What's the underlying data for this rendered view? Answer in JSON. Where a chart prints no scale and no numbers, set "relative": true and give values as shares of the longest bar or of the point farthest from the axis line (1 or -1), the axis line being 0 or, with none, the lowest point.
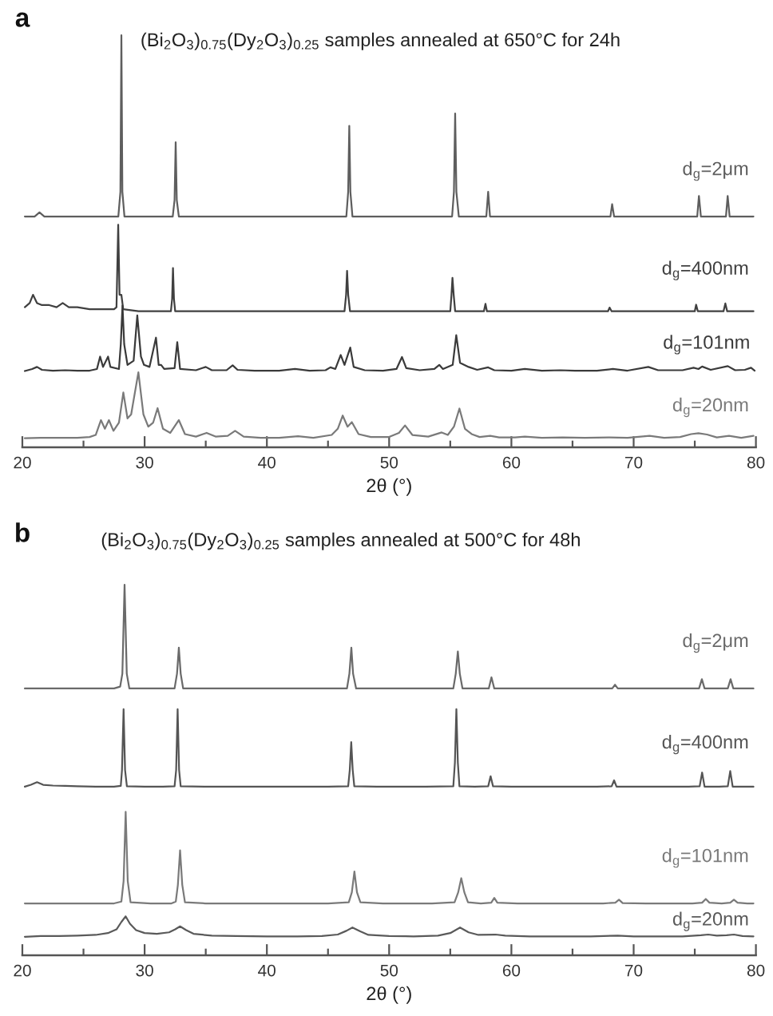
{
  "chart_data": [
    {
      "type": "line",
      "relative": true,
      "title": "(Bi$_{2}$O$_{3}$)$_{0.75}$(Dy$_{2}$O$_{3}$)$_{0.25}$ samples annealed at 650°C for 24h",
      "xlabel": "2θ (°)",
      "annotations": [
        "a"
      ],
      "xlim": [
        20,
        80
      ],
      "xticks": [
        20,
        {
          "value": 25,
          "label": null
        },
        30,
        {
          "value": 35,
          "label": null
        },
        40,
        {
          "value": 45,
          "label": null
        },
        50,
        {
          "value": 55,
          "label": null
        },
        60,
        {
          "value": 65,
          "label": null
        },
        70,
        {
          "value": 75,
          "label": null
        },
        80
      ],
      "series": [
        {
          "name": "d$_{g}$=2μm",
          "color": "#5e5e5e",
          "x": [
            20.2,
            21,
            21.4,
            21.8,
            23,
            24.5,
            26,
            27.3,
            27.85,
            28.02,
            28.1,
            28.18,
            28.35,
            29.5,
            31,
            32.3,
            32.45,
            32.54,
            32.63,
            32.8,
            34,
            36,
            38,
            40,
            42,
            44,
            46.5,
            46.65,
            46.74,
            46.83,
            47,
            48.5,
            50,
            52,
            54,
            55.15,
            55.3,
            55.4,
            55.5,
            55.7,
            57,
            57.95,
            58.1,
            58.25,
            60,
            62,
            64,
            66,
            68.1,
            68.24,
            68.4,
            70,
            72,
            74,
            75.2,
            75.34,
            75.5,
            76.5,
            77.55,
            77.69,
            77.85,
            79,
            79.8
          ],
          "values": [
            0.56,
            0.56,
            0.57,
            0.56,
            0.56,
            0.56,
            0.56,
            0.56,
            0.56,
            0.62,
            1.0,
            0.62,
            0.56,
            0.56,
            0.56,
            0.56,
            0.6,
            0.74,
            0.6,
            0.56,
            0.56,
            0.56,
            0.56,
            0.56,
            0.56,
            0.56,
            0.56,
            0.62,
            0.78,
            0.62,
            0.56,
            0.56,
            0.56,
            0.56,
            0.56,
            0.56,
            0.62,
            0.81,
            0.62,
            0.56,
            0.56,
            0.56,
            0.62,
            0.56,
            0.56,
            0.56,
            0.56,
            0.56,
            0.56,
            0.59,
            0.56,
            0.56,
            0.56,
            0.56,
            0.56,
            0.61,
            0.56,
            0.56,
            0.56,
            0.61,
            0.56,
            0.56,
            0.56
          ]
        },
        {
          "name": "d$_{g}$=400nm",
          "color": "#404040",
          "x": [
            20.2,
            20.6,
            20.87,
            21.2,
            21.6,
            22.2,
            22.8,
            23.3,
            23.8,
            24.5,
            25.5,
            26.5,
            27.5,
            27.7,
            27.84,
            27.95,
            28.1,
            28.25,
            29.5,
            31,
            32.15,
            32.25,
            32.32,
            32.4,
            32.5,
            34,
            36,
            38,
            40,
            42,
            44,
            46.35,
            46.48,
            46.56,
            46.65,
            46.8,
            48.5,
            50.5,
            52.5,
            54.5,
            55,
            55.1,
            55.18,
            55.28,
            55.4,
            57,
            57.75,
            57.88,
            58,
            60,
            62,
            64,
            66,
            67.9,
            68.03,
            68.2,
            70,
            72,
            74,
            75,
            75.11,
            75.25,
            76.5,
            77.35,
            77.5,
            77.65,
            79,
            79.8
          ],
          "values": [
            0.34,
            0.35,
            0.37,
            0.35,
            0.345,
            0.345,
            0.34,
            0.35,
            0.34,
            0.34,
            0.335,
            0.335,
            0.335,
            0.34,
            0.54,
            0.37,
            0.37,
            0.335,
            0.33,
            0.33,
            0.33,
            0.36,
            0.435,
            0.36,
            0.33,
            0.33,
            0.33,
            0.33,
            0.33,
            0.33,
            0.33,
            0.33,
            0.37,
            0.428,
            0.37,
            0.33,
            0.33,
            0.33,
            0.33,
            0.33,
            0.33,
            0.37,
            0.411,
            0.37,
            0.33,
            0.33,
            0.33,
            0.348,
            0.33,
            0.33,
            0.33,
            0.33,
            0.33,
            0.33,
            0.339,
            0.33,
            0.33,
            0.33,
            0.33,
            0.33,
            0.346,
            0.33,
            0.33,
            0.33,
            0.349,
            0.33,
            0.33,
            0.33
          ]
        },
        {
          "name": "d$_{g}$=101nm",
          "color": "#3a3a3a",
          "x": [
            20.2,
            20.8,
            21.2,
            21.6,
            22.5,
            23.5,
            24.5,
            25.5,
            26.1,
            26.36,
            26.6,
            27.01,
            27.2,
            27.9,
            28.05,
            28.19,
            28.33,
            28.6,
            29.1,
            29.4,
            29.7,
            29.95,
            30.4,
            30.93,
            31.15,
            31.35,
            31.6,
            32.45,
            32.67,
            32.9,
            34.2,
            35,
            35.5,
            36.7,
            37.2,
            37.6,
            39,
            41,
            42.3,
            43.5,
            44.8,
            45.2,
            45.6,
            46.04,
            46.35,
            46.82,
            47.1,
            48,
            49.5,
            50.6,
            51.05,
            51.4,
            52.5,
            53.7,
            54.1,
            54.4,
            55.2,
            55.49,
            55.8,
            56.5,
            57.2,
            58.1,
            58.6,
            60,
            61.1,
            62.5,
            64,
            65.2,
            67,
            68.3,
            69.5,
            71.2,
            72,
            74,
            74.9,
            75.3,
            75.6,
            76.3,
            77.7,
            78.3,
            79.1,
            79.6,
            79.9
          ],
          "values": [
            0.185,
            0.19,
            0.195,
            0.188,
            0.186,
            0.187,
            0.186,
            0.186,
            0.19,
            0.22,
            0.195,
            0.22,
            0.195,
            0.19,
            0.25,
            0.344,
            0.25,
            0.2,
            0.21,
            0.32,
            0.22,
            0.2,
            0.195,
            0.266,
            0.2,
            0.2,
            0.19,
            0.192,
            0.255,
            0.19,
            0.187,
            0.195,
            0.187,
            0.187,
            0.199,
            0.188,
            0.186,
            0.186,
            0.19,
            0.186,
            0.187,
            0.194,
            0.19,
            0.224,
            0.2,
            0.242,
            0.195,
            0.187,
            0.186,
            0.19,
            0.219,
            0.192,
            0.187,
            0.19,
            0.2,
            0.19,
            0.2,
            0.272,
            0.205,
            0.195,
            0.188,
            0.194,
            0.187,
            0.186,
            0.19,
            0.186,
            0.187,
            0.186,
            0.186,
            0.19,
            0.186,
            0.195,
            0.187,
            0.187,
            0.193,
            0.19,
            0.196,
            0.188,
            0.197,
            0.187,
            0.188,
            0.193,
            0.186
          ]
        },
        {
          "name": "d$_{g}$=20nm",
          "color": "#7a7a7a",
          "x": [
            20.2,
            21.5,
            23,
            24.5,
            25.5,
            26,
            26.43,
            26.75,
            27.08,
            27.45,
            27.9,
            28.26,
            28.6,
            28.9,
            29.49,
            29.9,
            30.3,
            30.7,
            31.06,
            31.5,
            32.1,
            32.8,
            33.3,
            34.2,
            35.07,
            35.8,
            36.8,
            37.4,
            38.1,
            39.5,
            41,
            42.55,
            43.8,
            45.3,
            45.8,
            46.2,
            46.6,
            46.95,
            47.5,
            48.5,
            50,
            50.8,
            51.3,
            51.9,
            53.2,
            54.3,
            54.8,
            55.3,
            55.75,
            56.2,
            56.75,
            57.4,
            58.27,
            59,
            60.3,
            61.1,
            62.5,
            64.2,
            66,
            68,
            69.5,
            71.3,
            72.5,
            73.8,
            74.7,
            75.3,
            76,
            76.8,
            77.8,
            78.8,
            79.8
          ],
          "values": [
            0.022,
            0.023,
            0.023,
            0.023,
            0.025,
            0.03,
            0.066,
            0.045,
            0.066,
            0.04,
            0.06,
            0.133,
            0.07,
            0.08,
            0.182,
            0.08,
            0.05,
            0.06,
            0.095,
            0.045,
            0.035,
            0.066,
            0.032,
            0.026,
            0.035,
            0.026,
            0.028,
            0.04,
            0.026,
            0.023,
            0.023,
            0.027,
            0.023,
            0.03,
            0.045,
            0.077,
            0.05,
            0.061,
            0.032,
            0.025,
            0.025,
            0.035,
            0.053,
            0.03,
            0.026,
            0.036,
            0.03,
            0.05,
            0.094,
            0.045,
            0.032,
            0.025,
            0.028,
            0.024,
            0.024,
            0.026,
            0.023,
            0.024,
            0.023,
            0.024,
            0.023,
            0.028,
            0.023,
            0.025,
            0.032,
            0.034,
            0.031,
            0.024,
            0.028,
            0.023,
            0.028
          ]
        }
      ]
    },
    {
      "type": "line",
      "relative": true,
      "title": "(Bi$_{2}$O$_{3}$)$_{0.75}$(Dy$_{2}$O$_{3}$)$_{0.25}$ samples annealed at 500°C for 48h",
      "xlabel": "2θ (°)",
      "annotations": [
        "b"
      ],
      "xlim": [
        20,
        80
      ],
      "xticks": [
        20,
        {
          "value": 25,
          "label": null
        },
        30,
        {
          "value": 35,
          "label": null
        },
        40,
        {
          "value": 45,
          "label": null
        },
        50,
        {
          "value": 55,
          "label": null
        },
        60,
        {
          "value": 65,
          "label": null
        },
        70,
        {
          "value": 75,
          "label": null
        },
        80
      ],
      "series": [
        {
          "name": "d$_{g}$=2μm",
          "color": "#6a6a6a",
          "x": [
            20.2,
            21.5,
            23,
            24.5,
            26,
            27.5,
            28,
            28.18,
            28.36,
            28.54,
            28.75,
            30,
            31.5,
            32.45,
            32.65,
            32.8,
            32.95,
            33.15,
            35,
            37.5,
            40,
            42.5,
            45,
            46.55,
            46.75,
            46.91,
            47.05,
            47.3,
            49,
            51,
            53,
            55.25,
            55.45,
            55.62,
            55.78,
            56,
            57,
            58.15,
            58.37,
            58.6,
            60,
            62.5,
            65,
            67,
            68.25,
            68.48,
            68.7,
            70.5,
            72.5,
            74.5,
            75.35,
            75.58,
            75.8,
            77,
            77.7,
            77.93,
            78.15,
            79.2,
            79.8
          ],
          "values": [
            0.72,
            0.72,
            0.72,
            0.72,
            0.72,
            0.72,
            0.725,
            0.76,
            1.0,
            0.76,
            0.72,
            0.72,
            0.72,
            0.72,
            0.76,
            0.83,
            0.76,
            0.72,
            0.72,
            0.72,
            0.72,
            0.72,
            0.72,
            0.72,
            0.76,
            0.83,
            0.76,
            0.72,
            0.72,
            0.72,
            0.72,
            0.72,
            0.76,
            0.82,
            0.76,
            0.72,
            0.72,
            0.72,
            0.75,
            0.72,
            0.72,
            0.72,
            0.72,
            0.72,
            0.72,
            0.73,
            0.72,
            0.72,
            0.72,
            0.72,
            0.72,
            0.745,
            0.72,
            0.72,
            0.72,
            0.745,
            0.72,
            0.72,
            0.72
          ]
        },
        {
          "name": "d$_{g}$=400nm",
          "color": "#555555",
          "x": [
            20.2,
            20.7,
            21.2,
            21.7,
            22.5,
            23.5,
            24.5,
            26,
            27.5,
            28.05,
            28.15,
            28.28,
            28.4,
            28.55,
            30,
            31.5,
            32.45,
            32.58,
            32.7,
            32.82,
            32.95,
            35,
            37.5,
            40,
            42.5,
            45,
            46.65,
            46.78,
            46.9,
            47.02,
            47.15,
            49,
            51,
            53,
            55.25,
            55.38,
            55.5,
            55.62,
            55.75,
            57,
            58.1,
            58.3,
            58.5,
            60,
            62.5,
            65,
            67,
            68.2,
            68.4,
            68.6,
            70.5,
            72.5,
            74.5,
            75.4,
            75.6,
            75.8,
            77,
            77.7,
            77.9,
            78.1,
            79.2,
            79.8
          ],
          "values": [
            0.455,
            0.46,
            0.467,
            0.46,
            0.458,
            0.457,
            0.456,
            0.455,
            0.455,
            0.457,
            0.5,
            0.664,
            0.5,
            0.456,
            0.455,
            0.455,
            0.456,
            0.5,
            0.664,
            0.5,
            0.456,
            0.455,
            0.455,
            0.455,
            0.455,
            0.455,
            0.456,
            0.5,
            0.575,
            0.5,
            0.456,
            0.455,
            0.455,
            0.455,
            0.456,
            0.52,
            0.664,
            0.52,
            0.456,
            0.455,
            0.456,
            0.483,
            0.456,
            0.455,
            0.455,
            0.455,
            0.455,
            0.456,
            0.472,
            0.455,
            0.455,
            0.455,
            0.455,
            0.456,
            0.493,
            0.455,
            0.455,
            0.456,
            0.497,
            0.455,
            0.455,
            0.455
          ]
        },
        {
          "name": "d$_{g}$=101nm",
          "color": "#7a7a7a",
          "x": [
            20.2,
            22,
            24,
            26,
            27.5,
            28.1,
            28.28,
            28.45,
            28.62,
            28.85,
            30.5,
            32.2,
            32.55,
            32.72,
            32.9,
            33.08,
            33.3,
            35,
            37.5,
            40,
            42.5,
            45,
            46.7,
            46.95,
            47.16,
            47.37,
            47.65,
            49.5,
            51.5,
            53.5,
            55.35,
            55.65,
            55.9,
            56.15,
            56.45,
            57.5,
            58.35,
            58.6,
            58.85,
            60.5,
            63,
            65.5,
            67.5,
            68.5,
            68.8,
            69.1,
            71,
            73,
            74.8,
            75.6,
            75.9,
            76.2,
            77.2,
            77.9,
            78.2,
            78.5,
            79.3,
            79.8
          ],
          "values": [
            0.14,
            0.14,
            0.14,
            0.14,
            0.14,
            0.145,
            0.2,
            0.387,
            0.2,
            0.143,
            0.14,
            0.14,
            0.145,
            0.19,
            0.283,
            0.19,
            0.143,
            0.14,
            0.14,
            0.14,
            0.14,
            0.14,
            0.143,
            0.17,
            0.226,
            0.17,
            0.143,
            0.14,
            0.14,
            0.14,
            0.143,
            0.17,
            0.208,
            0.17,
            0.143,
            0.14,
            0.142,
            0.155,
            0.142,
            0.14,
            0.14,
            0.14,
            0.14,
            0.142,
            0.15,
            0.141,
            0.14,
            0.14,
            0.14,
            0.142,
            0.152,
            0.142,
            0.14,
            0.142,
            0.15,
            0.142,
            0.14,
            0.14
          ]
        },
        {
          "name": "d$_{g}$=20nm",
          "color": "#5a5a5a",
          "x": [
            20.2,
            21.5,
            23,
            24.5,
            26,
            27,
            27.7,
            28.1,
            28.45,
            28.8,
            29.3,
            30,
            31,
            32,
            32.5,
            32.9,
            33.4,
            34,
            35.5,
            37.5,
            40,
            42.5,
            44.5,
            45.8,
            46.5,
            47,
            47.6,
            48.3,
            50,
            52,
            54,
            55,
            55.8,
            56.5,
            57.3,
            58.7,
            59.5,
            61.5,
            64,
            66.5,
            68.7,
            70,
            72,
            74,
            75.5,
            76.1,
            76.8,
            77.6,
            78.2,
            78.9,
            79.8
          ],
          "values": [
            0.05,
            0.052,
            0.052,
            0.053,
            0.055,
            0.06,
            0.07,
            0.09,
            0.105,
            0.085,
            0.068,
            0.06,
            0.058,
            0.062,
            0.07,
            0.078,
            0.068,
            0.058,
            0.053,
            0.052,
            0.051,
            0.051,
            0.052,
            0.056,
            0.066,
            0.075,
            0.065,
            0.055,
            0.052,
            0.051,
            0.053,
            0.06,
            0.075,
            0.062,
            0.055,
            0.056,
            0.053,
            0.051,
            0.051,
            0.051,
            0.053,
            0.051,
            0.051,
            0.051,
            0.054,
            0.056,
            0.053,
            0.054,
            0.056,
            0.052,
            0.051
          ]
        }
      ]
    }
  ]
}
